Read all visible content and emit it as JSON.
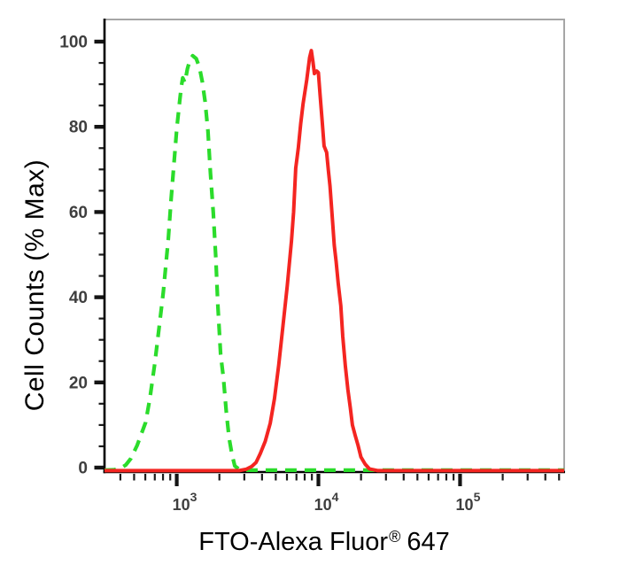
{
  "figure": {
    "background": "#ffffff",
    "axis_color": "#000000",
    "border_color": "#a6a6a6",
    "tick_label_color": "#3e3e3e"
  },
  "chart_data": {
    "type": "line",
    "subtype": "flow-cytometry-histogram-overlay",
    "title": "",
    "xlabel": "FTO-Alexa Fluor® 647",
    "xlabel_parts": {
      "main": "FTO-Alexa Fluor",
      "sup": "®",
      "tail": "647"
    },
    "ylabel": "Cell Counts (% Max)",
    "x_scale": "log10",
    "grid": false,
    "legend": null,
    "x_axis": {
      "range_log10": [
        2.49,
        5.735
      ],
      "major_ticks": [
        {
          "log10": 3,
          "label_base": "10",
          "label_exp": "3"
        },
        {
          "log10": 4,
          "label_base": "10",
          "label_exp": "4"
        },
        {
          "log10": 5,
          "label_base": "10",
          "label_exp": "5"
        }
      ],
      "minor_ticks_log10": [
        2.602,
        2.699,
        2.778,
        2.845,
        2.903,
        2.954,
        3.301,
        3.477,
        3.602,
        3.699,
        3.778,
        3.845,
        3.903,
        3.954,
        4.301,
        4.477,
        4.602,
        4.699,
        4.778,
        4.845,
        4.903,
        4.954,
        5.301,
        5.477,
        5.602,
        5.699
      ]
    },
    "y_axis": {
      "range": [
        -1.04,
        105.2
      ],
      "major_ticks": [
        0,
        20,
        40,
        60,
        80,
        100
      ],
      "minor_ticks": [
        5,
        10,
        15,
        25,
        30,
        35,
        45,
        50,
        55,
        65,
        70,
        75,
        85,
        90,
        95
      ]
    },
    "series": [
      {
        "name": "green-dashed-histogram",
        "color": "#2bdc2b",
        "style": "dashed",
        "peak": {
          "x_log10": 3.11,
          "y_percent": 96.7
        },
        "points": [
          [
            2.49,
            -0.6
          ],
          [
            2.56,
            -0.5
          ],
          [
            2.61,
            0.0
          ],
          [
            2.64,
            0.6
          ],
          [
            2.675,
            2.1
          ],
          [
            2.72,
            5.2
          ],
          [
            2.75,
            7.9
          ],
          [
            2.78,
            10.6
          ],
          [
            2.81,
            16.2
          ],
          [
            2.845,
            24.5
          ],
          [
            2.875,
            32.8
          ],
          [
            2.905,
            41.2
          ],
          [
            2.94,
            53.6
          ],
          [
            2.96,
            63.0
          ],
          [
            2.98,
            71.3
          ],
          [
            3.0,
            79.6
          ],
          [
            3.02,
            85.9
          ],
          [
            3.032,
            89.4
          ],
          [
            3.042,
            91.5
          ],
          [
            3.058,
            90.4
          ],
          [
            3.075,
            93.6
          ],
          [
            3.092,
            95.6
          ],
          [
            3.112,
            96.7
          ],
          [
            3.138,
            96.0
          ],
          [
            3.16,
            94.0
          ],
          [
            3.18,
            90.6
          ],
          [
            3.2,
            85.9
          ],
          [
            3.22,
            79.0
          ],
          [
            3.238,
            69.2
          ],
          [
            3.258,
            59.9
          ],
          [
            3.275,
            49.5
          ],
          [
            3.29,
            38.0
          ],
          [
            3.31,
            26.6
          ],
          [
            3.33,
            21.0
          ],
          [
            3.35,
            13.1
          ],
          [
            3.37,
            6.9
          ],
          [
            3.39,
            3.1
          ],
          [
            3.41,
            0.4
          ],
          [
            3.44,
            -0.4
          ],
          [
            3.5,
            -0.6
          ],
          [
            4.2,
            -0.6
          ],
          [
            5.0,
            -0.6
          ],
          [
            5.735,
            -0.6
          ]
        ]
      },
      {
        "name": "red-solid-histogram",
        "color": "#f42521",
        "style": "solid",
        "peak": {
          "x_log10": 3.95,
          "y_percent": 97.9
        },
        "points": [
          [
            2.49,
            -0.7
          ],
          [
            3.44,
            -0.7
          ],
          [
            3.49,
            -0.4
          ],
          [
            3.53,
            0.3
          ],
          [
            3.56,
            1.2
          ],
          [
            3.59,
            3.3
          ],
          [
            3.625,
            6.2
          ],
          [
            3.66,
            10.4
          ],
          [
            3.69,
            16.2
          ],
          [
            3.72,
            24.1
          ],
          [
            3.75,
            33.3
          ],
          [
            3.78,
            42.6
          ],
          [
            3.81,
            53.2
          ],
          [
            3.825,
            60.0
          ],
          [
            3.84,
            70.3
          ],
          [
            3.858,
            75.0
          ],
          [
            3.875,
            80.7
          ],
          [
            3.892,
            85.4
          ],
          [
            3.918,
            91.1
          ],
          [
            3.938,
            96.3
          ],
          [
            3.95,
            97.9
          ],
          [
            3.962,
            95.2
          ],
          [
            3.972,
            92.5
          ],
          [
            3.988,
            93.1
          ],
          [
            4.0,
            92.7
          ],
          [
            4.012,
            87.5
          ],
          [
            4.028,
            80.7
          ],
          [
            4.04,
            75.5
          ],
          [
            4.058,
            74.0
          ],
          [
            4.07,
            69.9
          ],
          [
            4.082,
            66.1
          ],
          [
            4.1,
            57.8
          ],
          [
            4.112,
            52.2
          ],
          [
            4.125,
            48.4
          ],
          [
            4.14,
            43.2
          ],
          [
            4.158,
            38.0
          ],
          [
            4.172,
            30.8
          ],
          [
            4.19,
            23.9
          ],
          [
            4.208,
            18.3
          ],
          [
            4.225,
            14.1
          ],
          [
            4.24,
            10.0
          ],
          [
            4.26,
            7.5
          ],
          [
            4.28,
            5.2
          ],
          [
            4.3,
            2.5
          ],
          [
            4.33,
            0.8
          ],
          [
            4.36,
            -0.3
          ],
          [
            4.42,
            -0.7
          ],
          [
            5.0,
            -0.7
          ],
          [
            5.735,
            -0.7
          ]
        ]
      }
    ]
  }
}
